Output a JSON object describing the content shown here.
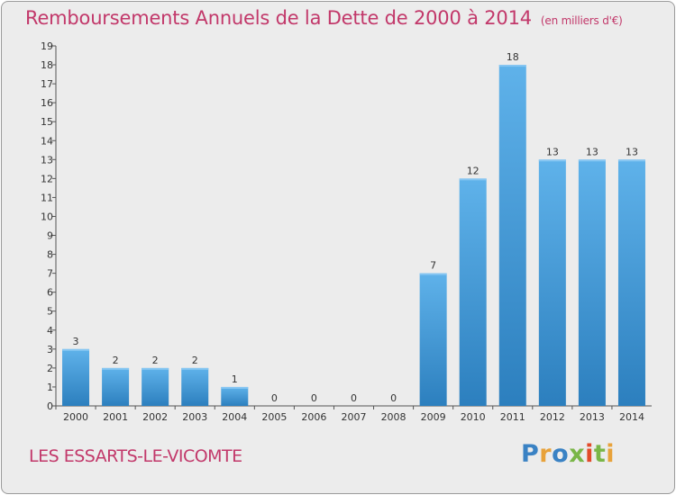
{
  "chart_data": {
    "type": "bar",
    "title": "Remboursements Annuels de la Dette de 2000 à 2014",
    "subtitle": "(en milliers d'€)",
    "categories": [
      "2000",
      "2001",
      "2002",
      "2003",
      "2004",
      "2005",
      "2006",
      "2007",
      "2008",
      "2009",
      "2010",
      "2011",
      "2012",
      "2013",
      "2014"
    ],
    "values": [
      3,
      2,
      2,
      2,
      1,
      0,
      0,
      0,
      0,
      7,
      12,
      18,
      13,
      13,
      13
    ],
    "ylim": [
      0,
      19
    ],
    "yticks": [
      0,
      1,
      2,
      3,
      4,
      5,
      6,
      7,
      8,
      9,
      10,
      11,
      12,
      13,
      14,
      15,
      16,
      17,
      18,
      19
    ],
    "ytick_labels": [
      "0",
      "1",
      "2",
      "3",
      "4",
      "5",
      "6",
      "7",
      "8",
      "9",
      "10",
      "11",
      "12",
      "13",
      "14",
      "15",
      "16",
      "17",
      "18",
      "19"
    ],
    "grid": false,
    "bar_color": "#3f98d8",
    "bar_color_light": "#5fb2ea",
    "bar_color_dark": "#2c7fbe"
  },
  "footer": {
    "commune": "LES ESSARTS-LE-VICOMTE"
  },
  "logo": {
    "letters": [
      "P",
      "r",
      "o",
      "x",
      "i",
      "t",
      "i"
    ],
    "colors": [
      "#3a82c4",
      "#e8a23a",
      "#3a82c4",
      "#7ab648",
      "#e24a2a",
      "#7ab648",
      "#e8a23a"
    ]
  }
}
